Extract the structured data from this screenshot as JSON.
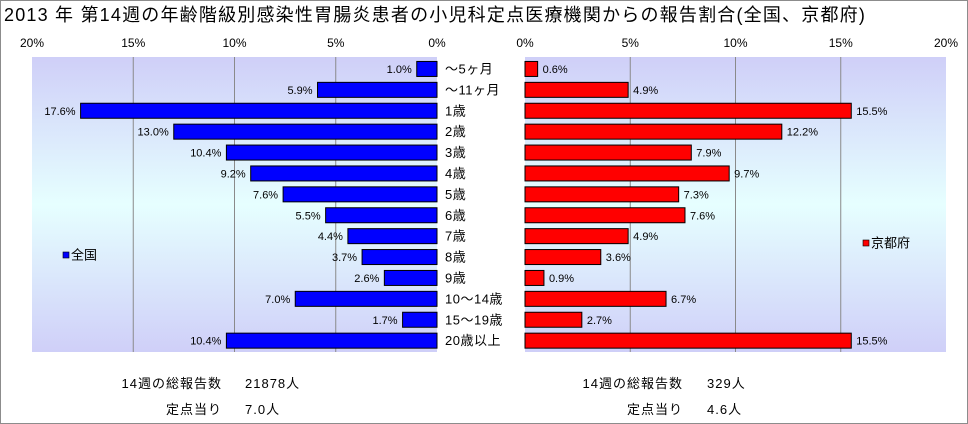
{
  "chart_data": {
    "type": "bar",
    "orientation": "horizontal",
    "title": "2013 年 第14週の年齢階級別感染性胃腸炎患者の小児科定点医療機関からの報告割合(全国、京都府)",
    "grid": true,
    "categories": [
      "～5ヶ月",
      "～11ヶ月",
      "1歳",
      "2歳",
      "3歳",
      "4歳",
      "5歳",
      "6歳",
      "7歳",
      "8歳",
      "9歳",
      "10～14歳",
      "15～19歳",
      "20歳以上"
    ],
    "series": [
      {
        "name": "全国",
        "color": "#0000ff",
        "values": [
          1.0,
          5.9,
          17.6,
          13.0,
          10.4,
          9.2,
          7.6,
          5.5,
          4.4,
          3.7,
          2.6,
          7.0,
          1.7,
          10.4
        ],
        "value_labels": [
          "1.0%",
          "5.9%",
          "17.6%",
          "13.0%",
          "10.4%",
          "9.2%",
          "7.6%",
          "5.5%",
          "4.4%",
          "3.7%",
          "2.6%",
          "7.0%",
          "1.7%",
          "10.4%"
        ],
        "xlim": [
          0,
          20
        ],
        "x_reversed": true,
        "x_ticks": [
          0,
          5,
          10,
          15,
          20
        ],
        "x_tick_labels": [
          "0%",
          "5%",
          "10%",
          "15%",
          "20%"
        ],
        "legend_position": "left",
        "notes": [
          {
            "label": "14週の総報告数",
            "value": "21878人"
          },
          {
            "label": "定点当り",
            "value": "7.0人"
          }
        ]
      },
      {
        "name": "京都府",
        "color": "#ff0000",
        "values": [
          0.6,
          4.9,
          15.5,
          12.2,
          7.9,
          9.7,
          7.3,
          7.6,
          4.9,
          3.6,
          0.9,
          6.7,
          2.7,
          15.5
        ],
        "value_labels": [
          "0.6%",
          "4.9%",
          "15.5%",
          "12.2%",
          "7.9%",
          "9.7%",
          "7.3%",
          "7.6%",
          "4.9%",
          "3.6%",
          "0.9%",
          "6.7%",
          "2.7%",
          "15.5%"
        ],
        "xlim": [
          0,
          20
        ],
        "x_reversed": false,
        "x_ticks": [
          0,
          5,
          10,
          15,
          20
        ],
        "x_tick_labels": [
          "0%",
          "5%",
          "10%",
          "15%",
          "20%"
        ],
        "legend_position": "right",
        "notes": [
          {
            "label": "14週の総報告数",
            "value": "329人"
          },
          {
            "label": "定点当り",
            "value": "4.6人"
          }
        ]
      }
    ]
  }
}
